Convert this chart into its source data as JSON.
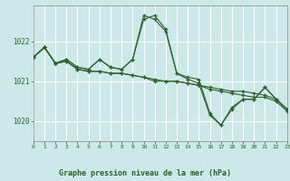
{
  "title": "Graphe pression niveau de la mer (hPa)",
  "bg_color": "#cce8e8",
  "plot_bg_color": "#cce8e8",
  "grid_color": "#ffffff",
  "line_color": "#2d5f2d",
  "x_ticks": [
    0,
    1,
    2,
    3,
    4,
    5,
    6,
    7,
    8,
    9,
    10,
    11,
    12,
    13,
    14,
    15,
    16,
    17,
    18,
    19,
    20,
    21,
    22,
    23
  ],
  "y_ticks": [
    1020,
    1021,
    1022
  ],
  "ylim": [
    1019.5,
    1022.9
  ],
  "xlim": [
    0,
    23
  ],
  "series": [
    [
      1021.6,
      1021.85,
      1021.45,
      1021.5,
      1021.3,
      1021.25,
      1021.25,
      1021.2,
      1021.2,
      1021.15,
      1021.1,
      1021.0,
      1021.0,
      1021.0,
      1020.95,
      1020.9,
      1020.8,
      1020.75,
      1020.7,
      1020.65,
      1020.6,
      1020.6,
      1020.5,
      1020.25
    ],
    [
      1021.6,
      1021.85,
      1021.45,
      1021.55,
      1021.35,
      1021.3,
      1021.55,
      1021.35,
      1021.3,
      1021.55,
      1022.55,
      1022.65,
      1022.3,
      1021.2,
      1021.1,
      1021.05,
      1020.2,
      1019.9,
      1020.35,
      1020.55,
      1020.55,
      1020.85,
      1020.55,
      1020.3
    ],
    [
      1021.6,
      1021.85,
      1021.45,
      1021.55,
      1021.35,
      1021.3,
      1021.55,
      1021.35,
      1021.3,
      1021.55,
      1022.65,
      1022.55,
      1022.25,
      1021.2,
      1021.05,
      1020.95,
      1020.15,
      1019.9,
      1020.3,
      1020.55,
      1020.55,
      1020.85,
      1020.55,
      1020.3
    ],
    [
      1021.6,
      1021.85,
      1021.45,
      1021.5,
      1021.3,
      1021.25,
      1021.25,
      1021.2,
      1021.2,
      1021.15,
      1021.1,
      1021.05,
      1021.0,
      1021.0,
      1020.95,
      1020.9,
      1020.85,
      1020.8,
      1020.75,
      1020.75,
      1020.7,
      1020.65,
      1020.55,
      1020.3
    ]
  ]
}
